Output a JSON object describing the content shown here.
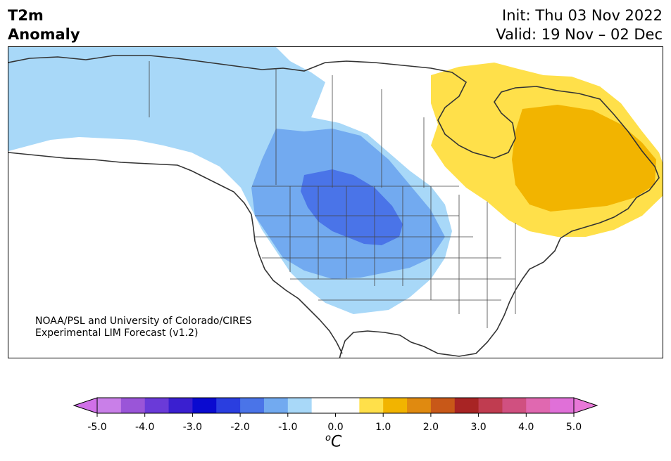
{
  "header": {
    "variable_line1": "T2m",
    "variable_line2": "Anomaly",
    "init": "Init: Thu 03 Nov 2022",
    "valid": "Valid: 19 Nov – 02 Dec"
  },
  "credit": {
    "line1": "NOAA/PSL and University of Colorado/CIRES",
    "line2": "Experimental LIM Forecast (v1.2)"
  },
  "colorbar": {
    "unit_base": "C",
    "unit_sup": "o",
    "ticks": [
      "-5.0",
      "-4.0",
      "-3.0",
      "-2.0",
      "-1.0",
      "0.0",
      "1.0",
      "2.0",
      "3.0",
      "4.0",
      "5.0"
    ],
    "colors": [
      "#c97fe8",
      "#9a55d8",
      "#6a3ad8",
      "#3a1fd0",
      "#0a0ad0",
      "#2a3ee0",
      "#4a74e8",
      "#72aaf0",
      "#a8d8f8",
      "#ffffff",
      "#ffffff",
      "#ffe04a",
      "#f2b400",
      "#e08a10",
      "#c85818",
      "#a82424",
      "#c03c50",
      "#d05080",
      "#e068b0",
      "#e070d8"
    ],
    "under_color": "#d070e8",
    "over_color": "#e878d8"
  },
  "map": {
    "colors": {
      "light_blue": "#a8d8f8",
      "mid_blue": "#72aaf0",
      "blue": "#4a74e8",
      "yellow": "#ffe04a",
      "orange_yellow": "#f2b400"
    }
  }
}
